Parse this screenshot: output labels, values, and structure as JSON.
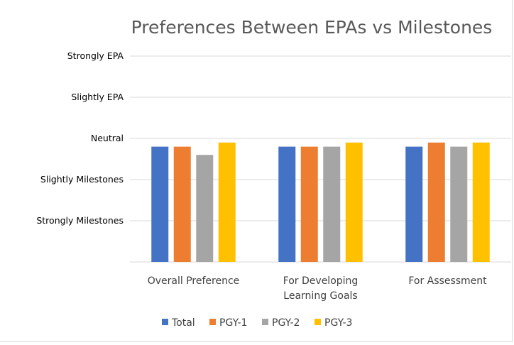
{
  "chart_data": {
    "type": "bar",
    "title": "Preferences Between EPAs vs Milestones",
    "xlabel": "",
    "ylabel": "",
    "categories": [
      [
        "Overall Preference"
      ],
      [
        "For Developing",
        "Learning Goals"
      ],
      [
        "For Assessment"
      ]
    ],
    "y_tick_labels": [
      "Strongly  Milestones",
      "Slightly Milestones",
      "Neutral",
      "Slightly EPA",
      "Strongly EPA"
    ],
    "y_tick_values": [
      1,
      2,
      3,
      4,
      5
    ],
    "ylim": [
      0,
      5
    ],
    "series": [
      {
        "name": "Total",
        "color": "#4472c4",
        "values": [
          2.8,
          2.8,
          2.8
        ]
      },
      {
        "name": "PGY-1",
        "color": "#ed7d31",
        "values": [
          2.8,
          2.8,
          2.9
        ]
      },
      {
        "name": "PGY-2",
        "color": "#a5a5a5",
        "values": [
          2.6,
          2.8,
          2.8
        ]
      },
      {
        "name": "PGY-3",
        "color": "#ffc000",
        "values": [
          2.9,
          2.9,
          2.9
        ]
      }
    ],
    "grid": true,
    "legend_position": "bottom"
  }
}
